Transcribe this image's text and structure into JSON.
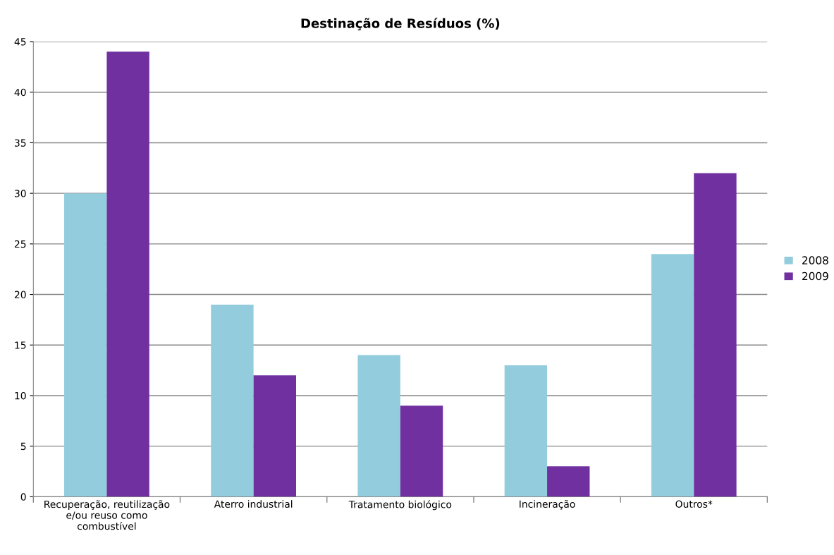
{
  "chart_data": {
    "type": "bar",
    "title": "Destinação de Resíduos (%)",
    "categories": [
      "Recuperação, reutilização\ne/ou reuso como\ncombustível",
      "Aterro industrial",
      "Tratamento biológico",
      "Incineração",
      "Outros*"
    ],
    "series": [
      {
        "name": "2008",
        "color": "#93cddd",
        "values": [
          30,
          19,
          14,
          13,
          24
        ]
      },
      {
        "name": "2009",
        "color": "#7030a0",
        "values": [
          44,
          12,
          9,
          3,
          32
        ]
      }
    ],
    "ylim": [
      0,
      45
    ],
    "yticks": [
      0,
      5,
      10,
      15,
      20,
      25,
      30,
      35,
      40,
      45
    ],
    "grid": "y",
    "legend": "right"
  }
}
